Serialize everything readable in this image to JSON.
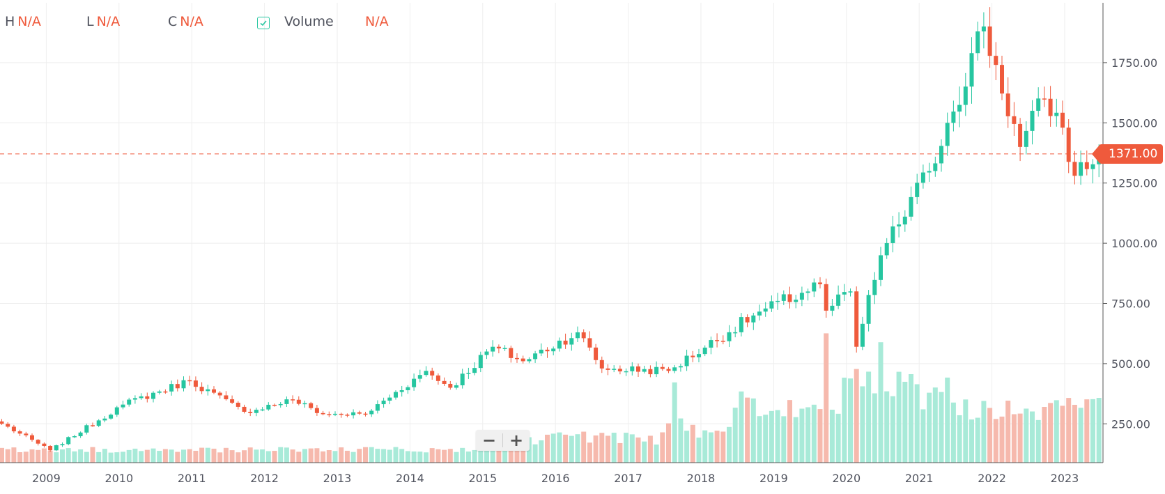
{
  "legend": {
    "h_label": "H",
    "h_value": "N/A",
    "l_label": "L",
    "l_value": "N/A",
    "c_label": "C",
    "c_value": "N/A",
    "volume_label": "Volume",
    "volume_value": "N/A",
    "volume_checked": true
  },
  "zoom": {
    "minus": "−",
    "plus": "+"
  },
  "colors": {
    "up": "#26c6a0",
    "down": "#ef5a3c",
    "vol_up": "#a8ead8",
    "vol_down": "#f6b9ad",
    "grid": "#eeeeee",
    "last_price": "#ef5a3c"
  },
  "chart_data": {
    "type": "candlestick",
    "interval": "monthly",
    "x_range": [
      "2008-06",
      "2023-08"
    ],
    "x_ticks": [
      "2009",
      "2010",
      "2011",
      "2012",
      "2013",
      "2014",
      "2015",
      "2016",
      "2017",
      "2018",
      "2019",
      "2020",
      "2021",
      "2022",
      "2023"
    ],
    "y_ticks": [
      "250.00",
      "500.00",
      "750.00",
      "1000.00",
      "1250.00",
      "1500.00",
      "1750.00"
    ],
    "y_range": [
      80,
      1990
    ],
    "last_price": 1371,
    "last_price_label": "1371.00",
    "grid": true,
    "key_closes": [
      {
        "date": "2008-06",
        "close": 250
      },
      {
        "date": "2009-02",
        "close": 140
      },
      {
        "date": "2010-02",
        "close": 330
      },
      {
        "date": "2011-01",
        "close": 430
      },
      {
        "date": "2011-10",
        "close": 300
      },
      {
        "date": "2012-06",
        "close": 350
      },
      {
        "date": "2012-11",
        "close": 290
      },
      {
        "date": "2013-06",
        "close": 290
      },
      {
        "date": "2014-04",
        "close": 470
      },
      {
        "date": "2014-08",
        "close": 400
      },
      {
        "date": "2015-03",
        "close": 570
      },
      {
        "date": "2015-08",
        "close": 510
      },
      {
        "date": "2016-05",
        "close": 630
      },
      {
        "date": "2016-09",
        "close": 480
      },
      {
        "date": "2017-08",
        "close": 470
      },
      {
        "date": "2018-10",
        "close": 700
      },
      {
        "date": "2019-09",
        "close": 830
      },
      {
        "date": "2019-10",
        "close": 720
      },
      {
        "date": "2020-02",
        "close": 800
      },
      {
        "date": "2020-03",
        "close": 570
      },
      {
        "date": "2020-07",
        "close": 950
      },
      {
        "date": "2021-03",
        "close": 1300
      },
      {
        "date": "2021-06",
        "close": 1500
      },
      {
        "date": "2021-12",
        "close": 1900
      },
      {
        "date": "2022-06",
        "close": 1400
      },
      {
        "date": "2022-10",
        "close": 1600
      },
      {
        "date": "2023-01",
        "close": 1480
      },
      {
        "date": "2023-03",
        "close": 1280
      },
      {
        "date": "2023-07",
        "close": 1371
      }
    ],
    "volume_scale_max": 700
  }
}
